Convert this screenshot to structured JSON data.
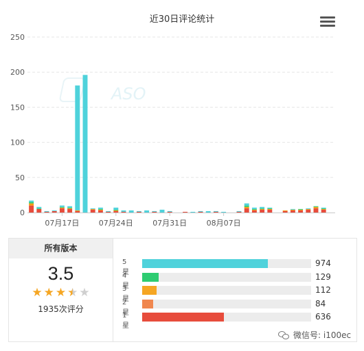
{
  "chart_data": {
    "type": "bar",
    "stacked": true,
    "title": "近30日评论统计",
    "ylim": [
      0,
      250
    ],
    "yticks": [
      "0",
      "50",
      "100",
      "150",
      "200",
      "250"
    ],
    "xtick_labels": [
      {
        "index": 4,
        "label": "07月17日"
      },
      {
        "index": 11,
        "label": "07月24日"
      },
      {
        "index": 18,
        "label": "07月31日"
      },
      {
        "index": 25,
        "label": "08月07日"
      }
    ],
    "grid": true,
    "series": [
      {
        "color": "#e74c3c",
        "values": [
          10,
          5,
          1,
          2,
          6,
          5,
          2,
          0,
          4,
          3,
          1,
          2,
          1,
          0,
          1,
          0,
          1,
          0,
          1,
          0,
          1,
          0,
          1,
          0,
          1,
          0,
          0,
          1,
          6,
          3,
          4,
          4,
          0,
          2,
          3,
          3,
          4,
          6,
          4,
          0
        ]
      },
      {
        "color": "#f39c12",
        "values": [
          3,
          0,
          0,
          0,
          1,
          1,
          1,
          0,
          1,
          1,
          0,
          1,
          0,
          0,
          0,
          0,
          0,
          0,
          0,
          0,
          0,
          0,
          0,
          0,
          0,
          0,
          0,
          0,
          2,
          1,
          1,
          1,
          0,
          1,
          1,
          1,
          1,
          2,
          1,
          0
        ]
      },
      {
        "color": "#2ecc71",
        "values": [
          2,
          1,
          0,
          0,
          1,
          1,
          0,
          0,
          0,
          1,
          0,
          1,
          0,
          0,
          0,
          0,
          0,
          0,
          0,
          0,
          0,
          0,
          0,
          0,
          0,
          0,
          0,
          0,
          2,
          1,
          1,
          1,
          0,
          0,
          0,
          1,
          0,
          1,
          1,
          0
        ]
      },
      {
        "color": "#4fd2db",
        "values": [
          2,
          2,
          1,
          1,
          2,
          2,
          178,
          196,
          1,
          2,
          1,
          3,
          2,
          3,
          1,
          3,
          1,
          4,
          1,
          0,
          0,
          1,
          1,
          2,
          1,
          1,
          0,
          1,
          3,
          2,
          2,
          1,
          0,
          0,
          1,
          0,
          1,
          0,
          1,
          0
        ]
      }
    ]
  },
  "ratings_panel": {
    "header": "所有版本",
    "score": "3.5",
    "stars": 3.5,
    "total_label": "1935次评分",
    "rows": [
      {
        "label": "5星",
        "count": "974",
        "value": 974,
        "color": "#4fd2db"
      },
      {
        "label": "4星",
        "count": "129",
        "value": 129,
        "color": "#2ecc71"
      },
      {
        "label": "3星",
        "count": "112",
        "value": 112,
        "color": "#f5a623"
      },
      {
        "label": "2星",
        "count": "84",
        "value": 84,
        "color": "#f0874f"
      },
      {
        "label": "1星",
        "count": "636",
        "value": 636,
        "color": "#e74c3c"
      }
    ],
    "max_value": 1310
  },
  "watermark": {
    "chart_logo": "ASO",
    "wechat": "微信号: i100ec"
  }
}
